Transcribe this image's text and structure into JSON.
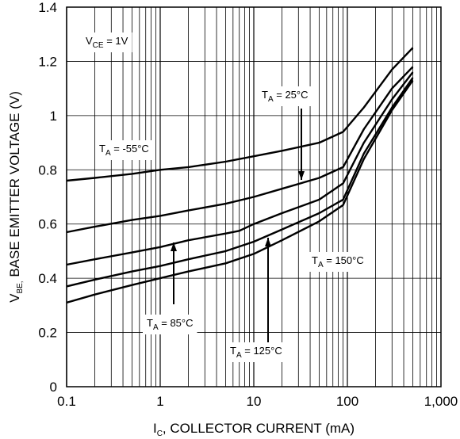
{
  "chart_data": {
    "type": "line",
    "title": "",
    "xlabel": "I",
    "xlabel_sub": "C",
    "xlabel_rest": ", COLLECTOR CURRENT (mA)",
    "ylabel": "V",
    "ylabel_sub": "BE,",
    "ylabel_rest": " BASE EMITTER VOLTAGE (V)",
    "x_scale": "log",
    "xlim": [
      0.1,
      1000
    ],
    "ylim": [
      0,
      1.4
    ],
    "x_ticks": [
      0.1,
      1,
      10,
      100,
      1000
    ],
    "x_tick_labels": [
      "0.1",
      "1",
      "10",
      "100",
      "1,000"
    ],
    "y_ticks": [
      0,
      0.2,
      0.4,
      0.6,
      0.8,
      1,
      1.2,
      1.4
    ],
    "y_tick_labels": [
      "0",
      "0.2",
      "0.4",
      "0.6",
      "0.8",
      "1",
      "1.2",
      "1.4"
    ],
    "grid": true,
    "series": [
      {
        "name": "T_A = -55°C",
        "label_main": "T",
        "label_sub": "A",
        "label_rest": " = -55°C",
        "x": [
          0.1,
          0.2,
          0.5,
          1,
          2,
          5,
          10,
          20,
          50,
          90,
          150,
          300,
          500
        ],
        "y": [
          0.76,
          0.77,
          0.785,
          0.8,
          0.81,
          0.83,
          0.85,
          0.87,
          0.9,
          0.94,
          1.03,
          1.17,
          1.25
        ]
      },
      {
        "name": "T_A = 25°C",
        "label_main": "T",
        "label_sub": "A",
        "label_rest": " = 25°C",
        "x": [
          0.1,
          0.2,
          0.5,
          1,
          2,
          5,
          10,
          20,
          50,
          90,
          150,
          300,
          500
        ],
        "y": [
          0.57,
          0.59,
          0.615,
          0.63,
          0.65,
          0.675,
          0.7,
          0.73,
          0.77,
          0.81,
          0.95,
          1.1,
          1.18
        ]
      },
      {
        "name": "T_A = 85°C",
        "label_main": "T",
        "label_sub": "A",
        "label_rest": " = 85°C",
        "x": [
          0.1,
          0.2,
          0.5,
          1,
          2,
          5,
          7,
          10,
          20,
          50,
          90,
          150,
          300,
          500
        ],
        "y": [
          0.45,
          0.47,
          0.495,
          0.515,
          0.54,
          0.565,
          0.575,
          0.6,
          0.64,
          0.69,
          0.75,
          0.9,
          1.06,
          1.16
        ]
      },
      {
        "name": "T_A = 125°C",
        "label_main": "T",
        "label_sub": "A",
        "label_rest": " = 125°C",
        "x": [
          0.1,
          0.2,
          0.5,
          1,
          2,
          5,
          10,
          20,
          50,
          90,
          150,
          300,
          500
        ],
        "y": [
          0.37,
          0.395,
          0.425,
          0.445,
          0.47,
          0.5,
          0.535,
          0.58,
          0.64,
          0.69,
          0.86,
          1.03,
          1.14
        ]
      },
      {
        "name": "T_A = 150°C",
        "label_main": "T",
        "label_sub": "A",
        "label_rest": " = 150°C",
        "x": [
          0.1,
          0.2,
          0.5,
          1,
          2,
          5,
          10,
          20,
          50,
          90,
          150,
          300,
          500
        ],
        "y": [
          0.31,
          0.34,
          0.375,
          0.4,
          0.425,
          0.455,
          0.49,
          0.54,
          0.61,
          0.67,
          0.84,
          1.02,
          1.13
        ]
      }
    ],
    "annotation": {
      "main": "V",
      "sub": "CE",
      "rest": " = 1V"
    }
  }
}
